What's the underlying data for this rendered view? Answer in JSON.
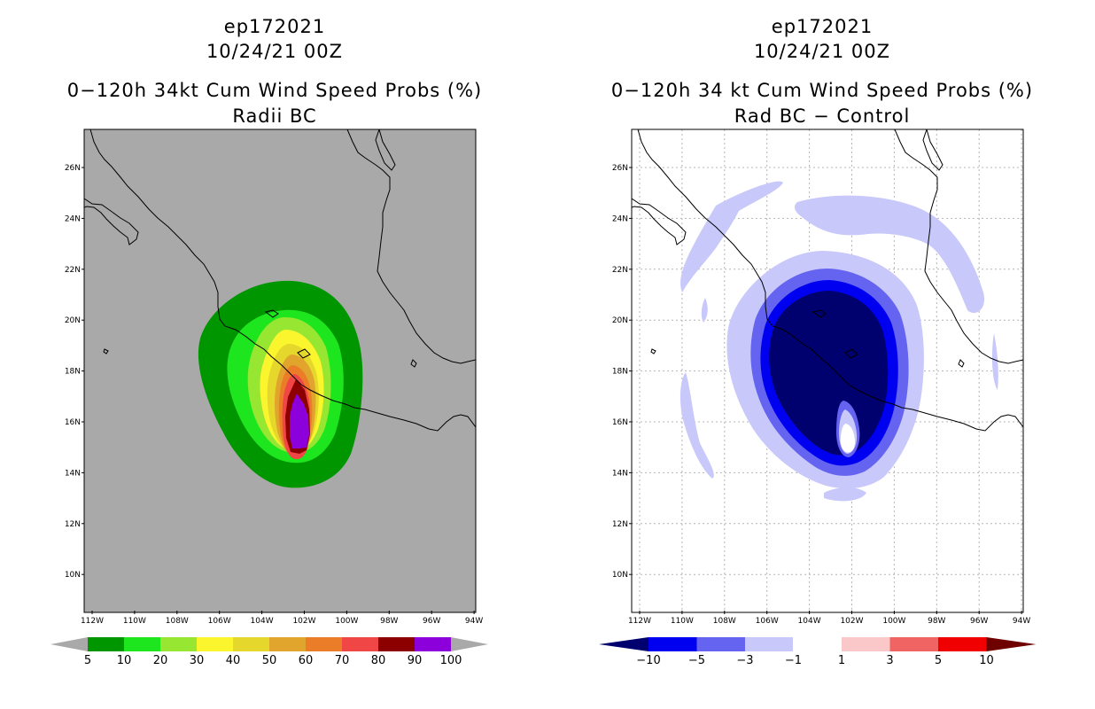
{
  "left_panel": {
    "title_line1": "ep172021",
    "title_line2": "10/24/21 00Z",
    "title_line3": "0−120h 34kt Cum Wind Speed Probs (%)",
    "title_line4": "Radii BC",
    "background_color": "#a9a9a9",
    "colorbar": {
      "labels": [
        "5",
        "10",
        "20",
        "30",
        "40",
        "50",
        "60",
        "70",
        "80",
        "90",
        "100"
      ],
      "colors": [
        "#009600",
        "#1ee61e",
        "#96e632",
        "#faf52d",
        "#e6d72d",
        "#e1a52d",
        "#eb7d28",
        "#f04646",
        "#8c0000",
        "#8c00dc"
      ],
      "under_color": "#a9a9a9",
      "over_color": "#a9a9a9"
    }
  },
  "right_panel": {
    "title_line1": "ep172021",
    "title_line2": "10/24/21 00Z",
    "title_line3": "0−120h 34 kt Cum Wind Speed Probs (%)",
    "title_line4": "Rad BC − Control",
    "background_color": "#ffffff",
    "colorbar": {
      "labels": [
        "−10",
        "−5",
        "−3",
        "−1",
        "1",
        "3",
        "5",
        "10"
      ],
      "colors": [
        "#00006e",
        "#0000f0",
        "#6464f0",
        "#c8c8fa",
        "#ffffff",
        "#fac8c8",
        "#f06464",
        "#f00000",
        "#6e0000"
      ]
    }
  },
  "map": {
    "lon_labels": [
      "112W",
      "110W",
      "108W",
      "106W",
      "104W",
      "102W",
      "100W",
      "98W",
      "96W",
      "94W"
    ],
    "lat_labels": [
      "26N",
      "24N",
      "22N",
      "20N",
      "18N",
      "16N",
      "14N",
      "12N",
      "10N"
    ]
  },
  "colors": {
    "coast": "#000000",
    "grid": "#b4b4b4"
  }
}
